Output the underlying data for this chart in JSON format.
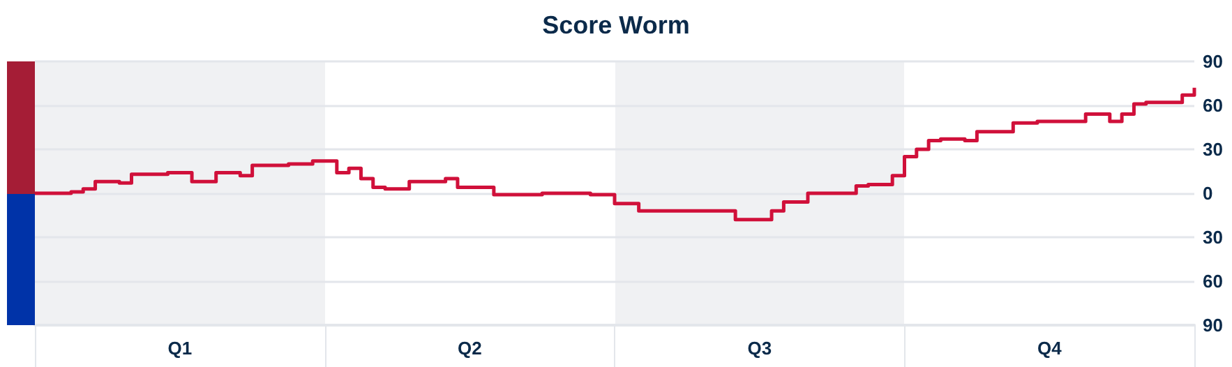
{
  "chart_data": {
    "type": "step",
    "title": "Score Worm",
    "categories": [
      null,
      null,
      null,
      null,
      null,
      null,
      null,
      null,
      null,
      null,
      null,
      null,
      "Q1",
      null,
      null,
      null,
      null,
      null,
      null,
      null,
      null,
      null,
      null,
      null,
      null,
      null,
      null,
      null,
      null,
      null,
      null,
      null,
      null,
      null,
      null,
      null,
      "Q2",
      null,
      null,
      null,
      null,
      null,
      null,
      null,
      null,
      null,
      null,
      null,
      null,
      null,
      null,
      null,
      null,
      null,
      null,
      null,
      null,
      null,
      null,
      null,
      "Q3",
      null,
      null,
      null,
      null,
      null,
      null,
      null,
      null,
      null,
      null,
      null,
      null,
      null,
      null,
      null,
      null,
      null,
      null,
      null,
      null,
      null,
      null,
      null,
      "Q4",
      null,
      null,
      null,
      null,
      null,
      null,
      null,
      null,
      null,
      null,
      null,
      null
    ],
    "series": [
      {
        "color": "#d0103a",
        "values": [
          0,
          0,
          0,
          1,
          3,
          8,
          8,
          7,
          13,
          13,
          13,
          14,
          14,
          8,
          8,
          14,
          14,
          12,
          19,
          19,
          19,
          20,
          20,
          22,
          22,
          14,
          17,
          10,
          4,
          3,
          3,
          8,
          8,
          8,
          10,
          4,
          4,
          4,
          -1,
          -1,
          -1,
          -1,
          0,
          0,
          0,
          0,
          -1,
          -1,
          -7,
          -7,
          -12,
          -12,
          -12,
          -12,
          -12,
          -12,
          -12,
          -12,
          -18,
          -18,
          -18,
          -12,
          -6,
          -6,
          0,
          0,
          0,
          0,
          5,
          6,
          6,
          12,
          25,
          30,
          36,
          37,
          37,
          36,
          42,
          42,
          42,
          48,
          48,
          49,
          49,
          49,
          49,
          54,
          54,
          49,
          54,
          61,
          62,
          62,
          62,
          67,
          72
        ]
      }
    ],
    "ylim": [
      -90,
      90
    ],
    "yticks": [
      {
        "value": -90,
        "label": "90"
      },
      {
        "value": -60,
        "label": "60"
      },
      {
        "value": -30,
        "label": "30"
      },
      0,
      30,
      60,
      90
    ],
    "grid": "y",
    "marker": "none",
    "line_style": "solid"
  }
}
